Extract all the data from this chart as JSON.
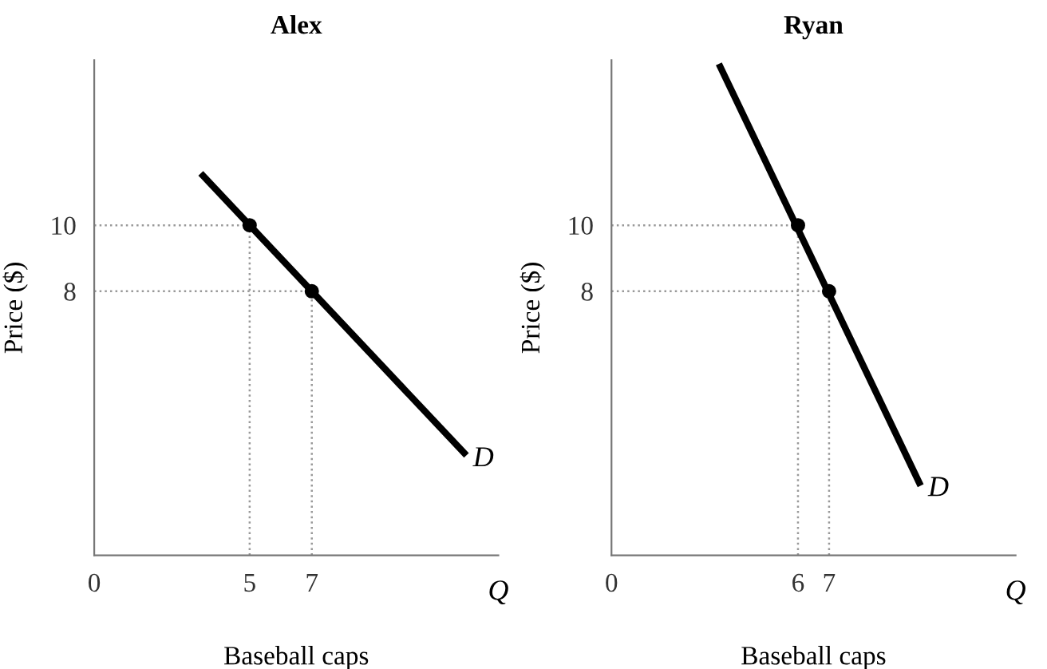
{
  "chart_data": [
    {
      "type": "line",
      "title": "Alex",
      "xlabel": "Baseball caps",
      "ylabel": "Price ($)",
      "xlim": [
        0,
        13
      ],
      "ylim": [
        0,
        15
      ],
      "xticks": [
        0,
        5,
        7
      ],
      "yticks": [
        8,
        10
      ],
      "grid": false,
      "legend": false,
      "annotations": [
        {
          "text": "D",
          "x": 11.9,
          "y": 3.1
        },
        "Q"
      ],
      "series": [
        {
          "type": "line",
          "color": "#999999",
          "line_style": "dotted",
          "marker": "none",
          "x": [
            0,
            5
          ],
          "values": [
            10,
            10
          ]
        },
        {
          "type": "line",
          "color": "#999999",
          "line_style": "dotted",
          "marker": "none",
          "x": [
            5,
            5
          ],
          "values": [
            0,
            10
          ]
        },
        {
          "type": "line",
          "color": "#999999",
          "line_style": "dotted",
          "marker": "none",
          "x": [
            0,
            7
          ],
          "values": [
            8,
            8
          ]
        },
        {
          "type": "line",
          "color": "#999999",
          "line_style": "dotted",
          "marker": "none",
          "x": [
            7,
            7
          ],
          "values": [
            0,
            8
          ]
        },
        {
          "type": "line",
          "color": "#000000",
          "line_style": "solid",
          "marker": "none",
          "x": [
            3.5,
            11.9
          ],
          "values": [
            11.5,
            3.1
          ]
        },
        {
          "type": "scatter",
          "color": "#000000",
          "marker": "circle",
          "x": [
            5,
            7
          ],
          "values": [
            10,
            8
          ]
        }
      ]
    },
    {
      "type": "line",
      "title": "Ryan",
      "xlabel": "Baseball caps",
      "ylabel": "Price ($)",
      "xlim": [
        0,
        13
      ],
      "ylim": [
        0,
        15
      ],
      "xticks": [
        0,
        6,
        7
      ],
      "yticks": [
        8,
        10
      ],
      "grid": false,
      "legend": false,
      "annotations": [
        {
          "text": "D",
          "x": 9.9,
          "y": 2.2
        },
        "Q"
      ],
      "series": [
        {
          "type": "line",
          "color": "#999999",
          "line_style": "dotted",
          "marker": "none",
          "x": [
            0,
            6
          ],
          "values": [
            10,
            10
          ]
        },
        {
          "type": "line",
          "color": "#999999",
          "line_style": "dotted",
          "marker": "none",
          "x": [
            6,
            6
          ],
          "values": [
            0,
            10
          ]
        },
        {
          "type": "line",
          "color": "#999999",
          "line_style": "dotted",
          "marker": "none",
          "x": [
            0,
            7
          ],
          "values": [
            8,
            8
          ]
        },
        {
          "type": "line",
          "color": "#999999",
          "line_style": "dotted",
          "marker": "none",
          "x": [
            7,
            7
          ],
          "values": [
            0,
            8
          ]
        },
        {
          "type": "line",
          "color": "#000000",
          "line_style": "solid",
          "marker": "none",
          "x": [
            3.5,
            9.9
          ],
          "values": [
            14.8,
            2.2
          ]
        },
        {
          "type": "scatter",
          "color": "#000000",
          "marker": "circle",
          "x": [
            6,
            7
          ],
          "values": [
            10,
            8
          ]
        }
      ]
    }
  ]
}
